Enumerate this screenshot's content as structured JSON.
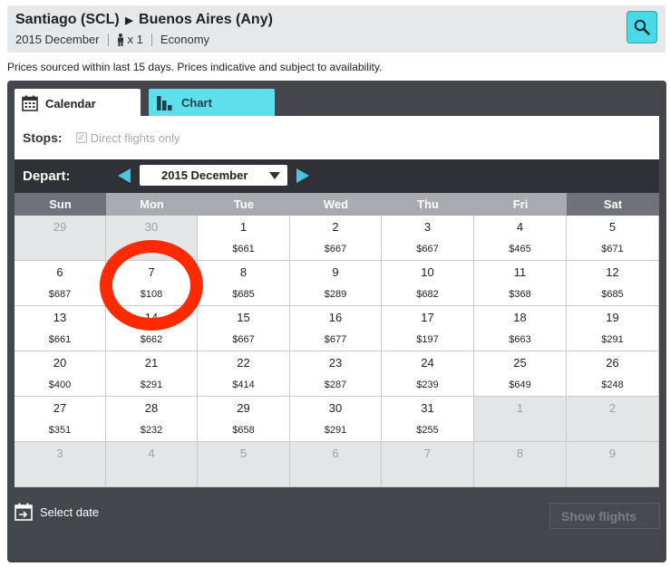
{
  "header": {
    "origin": "Santiago (SCL)",
    "destination": "Buenos Aires (Any)",
    "month": "2015 December",
    "passengers": "x 1",
    "cabin": "Economy"
  },
  "notice": "Prices sourced within last 15 days. Prices indicative and subject to availability.",
  "tabs": {
    "calendar": "Calendar",
    "chart": "Chart"
  },
  "filters": {
    "stops_label": "Stops:",
    "direct_only": "Direct flights only"
  },
  "depart": {
    "label": "Depart:",
    "selected_month": "2015 December"
  },
  "weekdays": [
    "Sun",
    "Mon",
    "Tue",
    "Wed",
    "Thu",
    "Fri",
    "Sat"
  ],
  "weeks": [
    [
      {
        "day": "29",
        "price": "",
        "out": true
      },
      {
        "day": "30",
        "price": "",
        "out": true
      },
      {
        "day": "1",
        "price": "$661"
      },
      {
        "day": "2",
        "price": "$667"
      },
      {
        "day": "3",
        "price": "$667"
      },
      {
        "day": "4",
        "price": "$465"
      },
      {
        "day": "5",
        "price": "$671"
      }
    ],
    [
      {
        "day": "6",
        "price": "$687"
      },
      {
        "day": "7",
        "price": "$108"
      },
      {
        "day": "8",
        "price": "$685"
      },
      {
        "day": "9",
        "price": "$289"
      },
      {
        "day": "10",
        "price": "$682"
      },
      {
        "day": "11",
        "price": "$368"
      },
      {
        "day": "12",
        "price": "$685"
      }
    ],
    [
      {
        "day": "13",
        "price": "$661"
      },
      {
        "day": "14",
        "price": "$662"
      },
      {
        "day": "15",
        "price": "$667"
      },
      {
        "day": "16",
        "price": "$677"
      },
      {
        "day": "17",
        "price": "$197"
      },
      {
        "day": "18",
        "price": "$663"
      },
      {
        "day": "19",
        "price": "$291"
      }
    ],
    [
      {
        "day": "20",
        "price": "$400"
      },
      {
        "day": "21",
        "price": "$291"
      },
      {
        "day": "22",
        "price": "$414"
      },
      {
        "day": "23",
        "price": "$287"
      },
      {
        "day": "24",
        "price": "$239"
      },
      {
        "day": "25",
        "price": "$649"
      },
      {
        "day": "26",
        "price": "$248"
      }
    ],
    [
      {
        "day": "27",
        "price": "$351"
      },
      {
        "day": "28",
        "price": "$232"
      },
      {
        "day": "29",
        "price": "$658"
      },
      {
        "day": "30",
        "price": "$291"
      },
      {
        "day": "31",
        "price": "$255"
      },
      {
        "day": "1",
        "price": "",
        "out": true
      },
      {
        "day": "2",
        "price": "",
        "out": true
      }
    ],
    [
      {
        "day": "3",
        "price": "",
        "out": true
      },
      {
        "day": "4",
        "price": "",
        "out": true
      },
      {
        "day": "5",
        "price": "",
        "out": true
      },
      {
        "day": "6",
        "price": "",
        "out": true
      },
      {
        "day": "7",
        "price": "",
        "out": true
      },
      {
        "day": "8",
        "price": "",
        "out": true
      },
      {
        "day": "9",
        "price": "",
        "out": true
      }
    ]
  ],
  "footer": {
    "select_date": "Select date",
    "show_flights": "Show flights"
  },
  "colors": {
    "accent": "#48d8e6",
    "panel": "#44464b",
    "highlight_circle": "#ff2a00"
  },
  "icons": {
    "search": "search-icon",
    "person": "person-icon",
    "calendar": "calendar-icon",
    "chart": "bar-chart-icon",
    "select_date": "calendar-arrow-icon"
  }
}
